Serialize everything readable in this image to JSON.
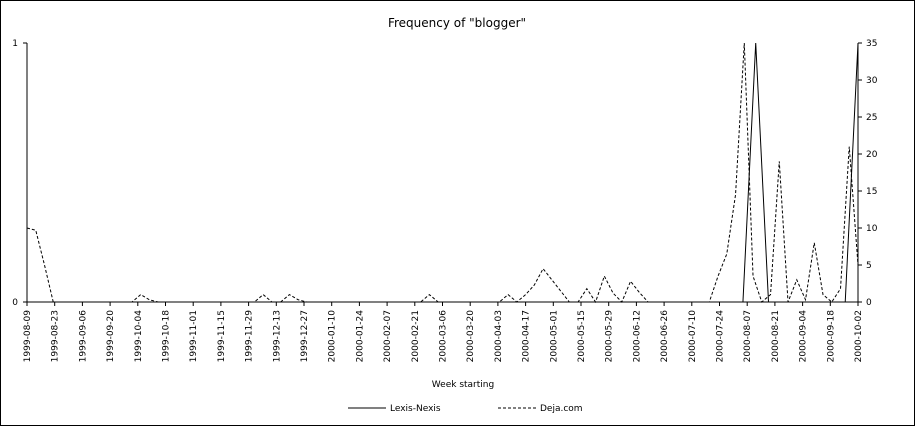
{
  "chart_data": {
    "type": "line",
    "title": "Frequency of \"blogger\"",
    "xlabel": "Week starting",
    "y_left": {
      "ylim": [
        0,
        1
      ],
      "ticks": [
        "0",
        "1"
      ]
    },
    "y_right": {
      "ylim": [
        0,
        35
      ],
      "ticks": [
        "0",
        "5",
        "10",
        "15",
        "20",
        "25",
        "30",
        "35"
      ]
    },
    "x_tick_labels": [
      "1999-08-09",
      "1999-08-23",
      "1999-09-06",
      "1999-09-20",
      "1999-10-04",
      "1999-10-18",
      "1999-11-01",
      "1999-11-15",
      "1999-11-29",
      "1999-12-13",
      "1999-12-27",
      "2000-01-10",
      "2000-01-24",
      "2000-02-07",
      "2000-02-21",
      "2000-03-06",
      "2000-03-20",
      "2000-04-03",
      "2000-04-17",
      "2000-05-01",
      "2000-05-15",
      "2000-05-29",
      "2000-06-12",
      "2000-06-26",
      "2000-07-10",
      "2000-07-24",
      "2000-08-07",
      "2000-08-21",
      "2000-09-04",
      "2000-09-18",
      "2000-10-02"
    ],
    "series": [
      {
        "name": "Lexis-Nexis",
        "axis": "left",
        "style": "solid",
        "values": [
          0,
          0,
          0,
          0,
          0,
          0,
          0,
          0,
          0,
          0,
          0,
          0,
          0,
          0,
          0,
          0,
          0,
          0,
          0,
          0,
          0,
          0,
          0,
          0,
          0,
          0,
          0,
          0,
          0,
          0,
          0,
          0,
          0,
          0,
          0,
          0,
          0,
          0,
          0,
          0,
          0,
          0,
          0,
          0,
          0,
          0,
          0,
          0,
          0,
          0,
          0,
          0,
          0,
          0,
          0,
          0,
          0,
          1,
          0,
          0,
          0,
          0,
          0,
          0,
          0,
          1
        ]
      },
      {
        "name": "Deja.com",
        "axis": "right",
        "style": "dashed",
        "values": [
          10,
          9.7,
          5,
          0,
          0,
          0,
          0,
          0,
          0,
          0,
          0,
          0,
          0,
          1,
          0.3,
          0,
          0,
          0,
          0,
          0,
          0,
          0,
          0,
          0,
          0,
          0,
          0,
          1,
          0,
          0,
          1,
          0.3,
          0,
          0,
          0,
          0,
          0,
          0,
          0,
          0,
          0,
          0,
          0,
          0,
          0,
          0,
          1,
          0,
          0,
          0,
          0,
          0,
          0,
          0,
          0,
          1,
          0,
          1,
          2.3,
          4.5,
          3,
          1.5,
          0,
          0,
          1.8,
          0,
          3.5,
          1.2,
          0,
          2.8,
          1.3,
          0,
          0,
          0,
          0,
          0,
          0,
          0,
          0,
          3.5,
          6.5,
          14.5,
          35,
          3.5,
          0,
          1,
          19,
          0,
          3,
          0.3,
          8,
          1,
          0,
          1.8,
          21,
          5
        ]
      }
    ],
    "legend": {
      "placement": "bottom",
      "entries": [
        "Lexis-Nexis",
        "Deja.com"
      ]
    }
  }
}
